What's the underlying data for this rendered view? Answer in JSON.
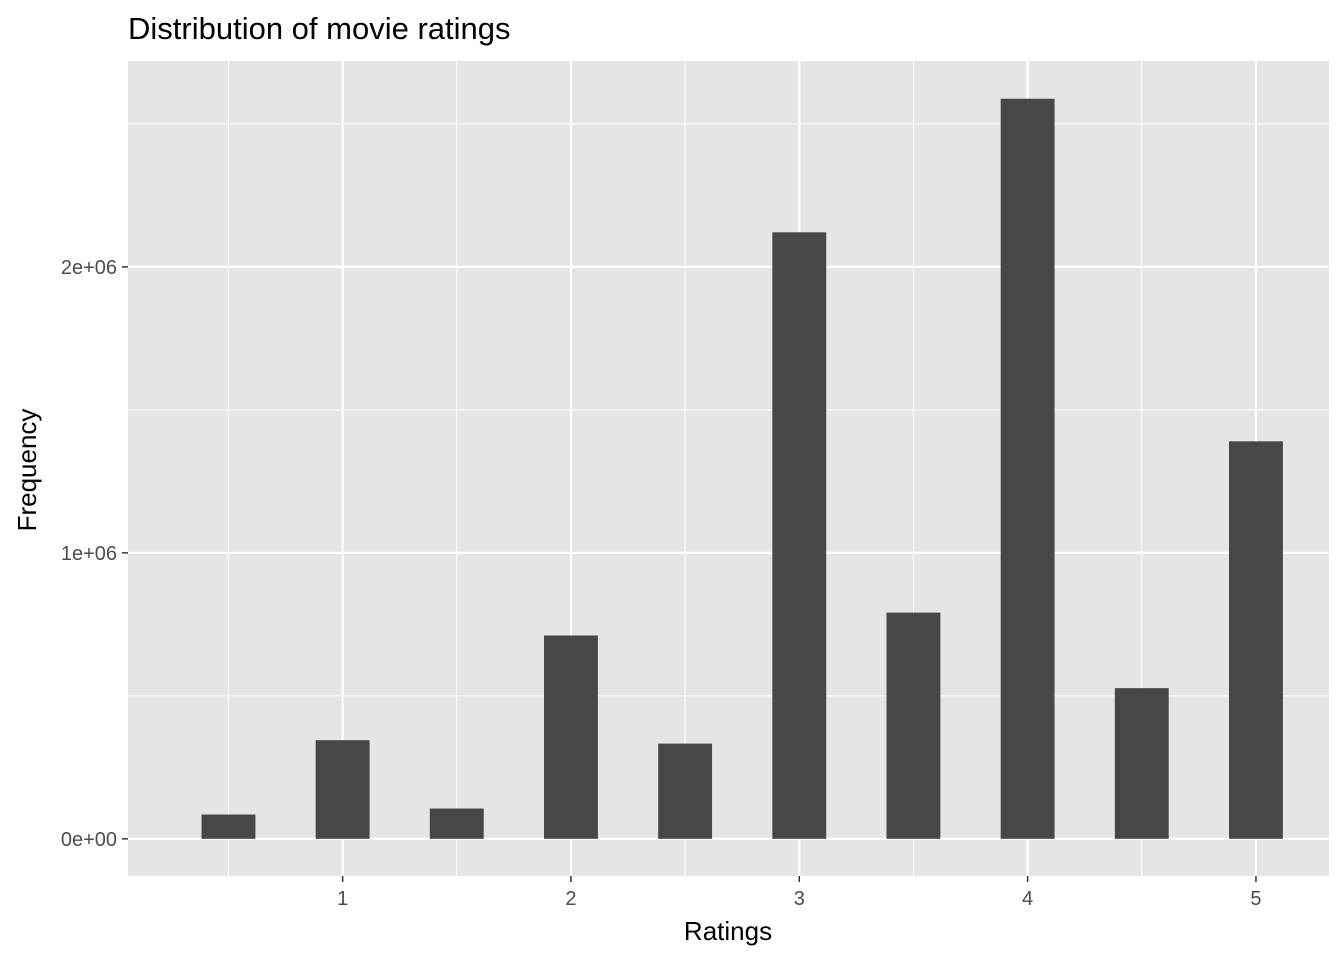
{
  "chart_data": {
    "type": "bar",
    "title": "Distribution of movie ratings",
    "xlabel": "Ratings",
    "ylabel": "Frequency",
    "x": [
      0.5,
      1.0,
      1.5,
      2.0,
      2.5,
      3.0,
      3.5,
      4.0,
      4.5,
      5.0
    ],
    "values": [
      85000,
      345000,
      106000,
      711000,
      333000,
      2121000,
      791000,
      2588000,
      527000,
      1390000
    ],
    "xlim": [
      0.06,
      5.32
    ],
    "ylim": [
      -130000,
      2720000
    ],
    "x_ticks": [
      1,
      2,
      3,
      4,
      5
    ],
    "x_tick_labels": [
      "1",
      "2",
      "3",
      "4",
      "5"
    ],
    "y_ticks": [
      0,
      1000000,
      2000000
    ],
    "y_tick_labels": [
      "0e+00",
      "1e+06",
      "2e+06"
    ],
    "grid": true,
    "legend": "none",
    "colors": {
      "bar": "#474747",
      "panel": "#e5e5e5",
      "grid": "#ffffff"
    }
  }
}
